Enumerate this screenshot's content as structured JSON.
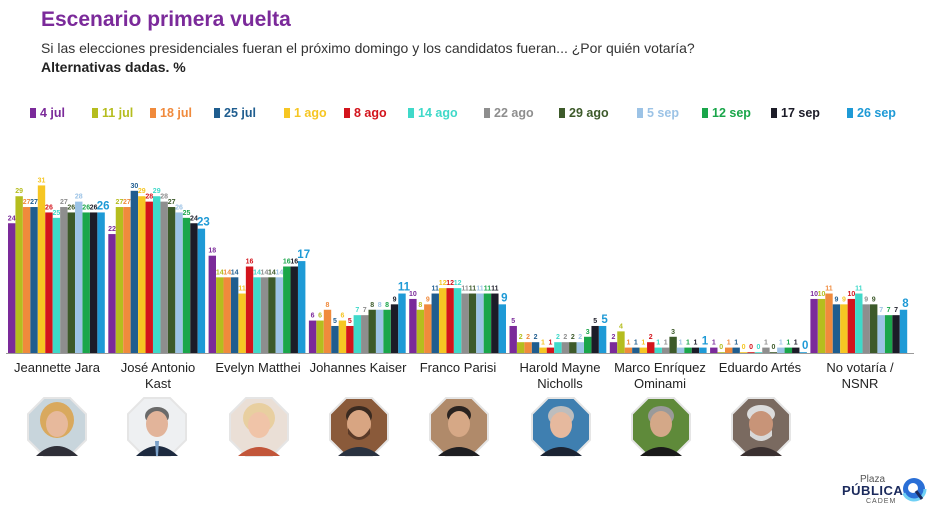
{
  "title": "Escenario primera vuelta",
  "subtitle": "Si las elecciones presidenciales fueran el próximo domingo y los candidatos fueran... ¿Por quién votaría?",
  "subtitle2": "Alternativas dadas. %",
  "logo": {
    "line1": "Plaza",
    "line2": "PÚBLICA",
    "line3": "CADEM"
  },
  "chart_data": {
    "type": "bar",
    "ylim": [
      0,
      32
    ],
    "categories": [
      "Jeannette Jara",
      "José Antonio Kast",
      "Evelyn Matthei",
      "Johannes Kaiser",
      "Franco Parisi",
      "Harold Mayne Nicholls",
      "Marco Enríquez Ominami",
      "Eduardo Artés",
      "No votaría / NSNR"
    ],
    "category_lines": [
      [
        "Jeannette Jara"
      ],
      [
        "José Antonio",
        "Kast"
      ],
      [
        "Evelyn Matthei"
      ],
      [
        "Johannes Kaiser"
      ],
      [
        "Franco Parisi"
      ],
      [
        "Harold Mayne",
        "Nicholls"
      ],
      [
        "Marco Enríquez",
        "Ominami"
      ],
      [
        "Eduardo Artés"
      ],
      [
        "No votaría /",
        "NSNR"
      ]
    ],
    "series": [
      {
        "name": "4 jul",
        "color": "#7b2a9a",
        "values": [
          24,
          22,
          18,
          6,
          10,
          5,
          2,
          1,
          10
        ]
      },
      {
        "name": "11 jul",
        "color": "#b5bd1e",
        "values": [
          29,
          27,
          14,
          6,
          8,
          2,
          4,
          0,
          10
        ]
      },
      {
        "name": "18 jul",
        "color": "#f08a3c",
        "values": [
          27,
          27,
          14,
          8,
          9,
          2,
          1,
          1,
          11
        ]
      },
      {
        "name": "25 jul",
        "color": "#1f5d8f",
        "values": [
          27,
          30,
          14,
          5,
          11,
          2,
          1,
          1,
          9
        ]
      },
      {
        "name": "1 ago",
        "color": "#f6c623",
        "values": [
          31,
          29,
          11,
          6,
          12,
          1,
          1,
          0,
          9
        ]
      },
      {
        "name": "8 ago",
        "color": "#d3141c",
        "values": [
          26,
          28,
          16,
          5,
          12,
          1,
          2,
          0,
          10
        ]
      },
      {
        "name": "14 ago",
        "color": "#3fd9c9",
        "values": [
          25,
          29,
          14,
          7,
          12,
          2,
          1,
          0,
          11
        ]
      },
      {
        "name": "22 ago",
        "color": "#8e8e8e",
        "values": [
          27,
          28,
          14,
          7,
          11,
          2,
          1,
          1,
          9
        ]
      },
      {
        "name": "29 ago",
        "color": "#3d5a2a",
        "values": [
          26,
          27,
          14,
          8,
          11,
          2,
          3,
          0,
          9
        ]
      },
      {
        "name": "5 sep",
        "color": "#9cc3e6",
        "values": [
          28,
          26,
          14,
          8,
          11,
          2,
          1,
          1,
          7
        ]
      },
      {
        "name": "12 sep",
        "color": "#1aa64a",
        "values": [
          26,
          25,
          16,
          8,
          11,
          3,
          1,
          1,
          7
        ]
      },
      {
        "name": "17 sep",
        "color": "#1c1c28",
        "values": [
          26,
          24,
          16,
          9,
          11,
          5,
          1,
          1,
          7
        ]
      },
      {
        "name": "26 sep",
        "color": "#1e9ad6",
        "values": [
          26,
          23,
          17,
          11,
          9,
          5,
          1,
          0,
          8
        ]
      }
    ]
  }
}
